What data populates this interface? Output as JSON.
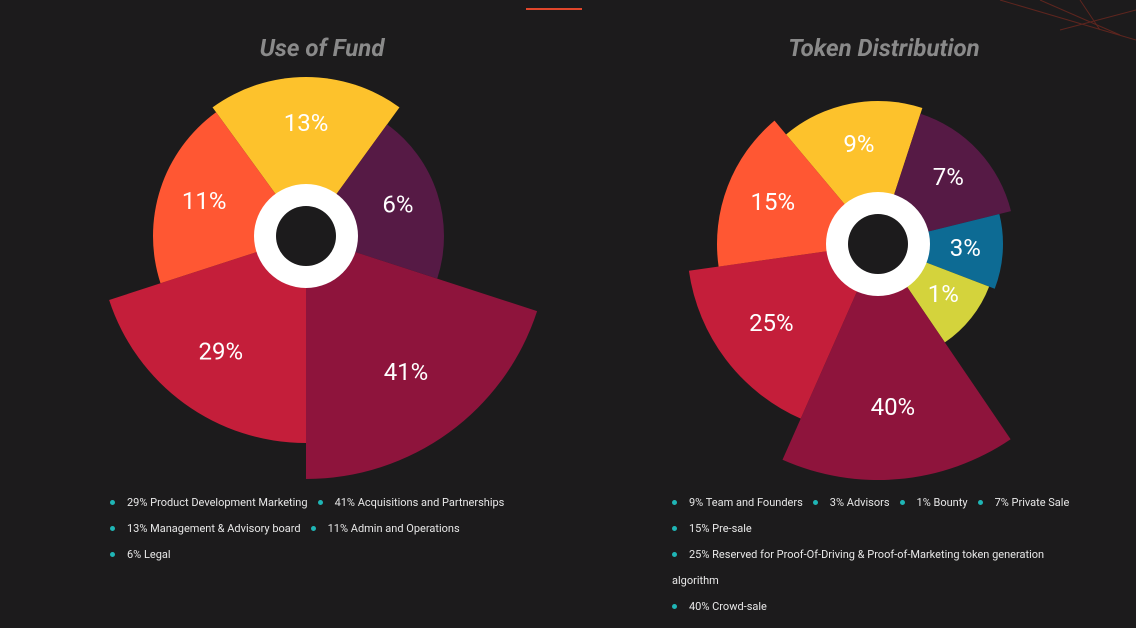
{
  "chart_data": [
    {
      "type": "pie",
      "title": "Use of Fund",
      "values": [
        13,
        6,
        41,
        29,
        11
      ],
      "value_labels": [
        "13%",
        "6%",
        "41%",
        "29%",
        "11%"
      ],
      "colors": [
        "#fdc22c",
        "#561a45",
        "#8e143c",
        "#c41e3a",
        "#ff5733"
      ],
      "legend": [
        "29% Product Development Marketing",
        "41% Acquisitions and Partnerships",
        "13% Management & Advisory board",
        "11% Admin and Operations",
        "6% Legal"
      ]
    },
    {
      "type": "pie",
      "title": "Token Distribution",
      "values": [
        9,
        7,
        3,
        1,
        40,
        25,
        15
      ],
      "value_labels": [
        "9%",
        "7%",
        "3%",
        "1%",
        "40%",
        "25%",
        "15%"
      ],
      "colors": [
        "#fdc22c",
        "#561a45",
        "#0d6b94",
        "#d4d33c",
        "#8e143c",
        "#c41e3a",
        "#ff5733"
      ],
      "legend": [
        "9% Team and Founders",
        "3% Advisors",
        "1% Bounty",
        "7% Private Sale",
        "15% Pre-sale",
        "25% Reserved for Proof-Of-Driving & Proof-of-Marketing token generation algorithm",
        "40% Crowd-sale"
      ]
    }
  ]
}
